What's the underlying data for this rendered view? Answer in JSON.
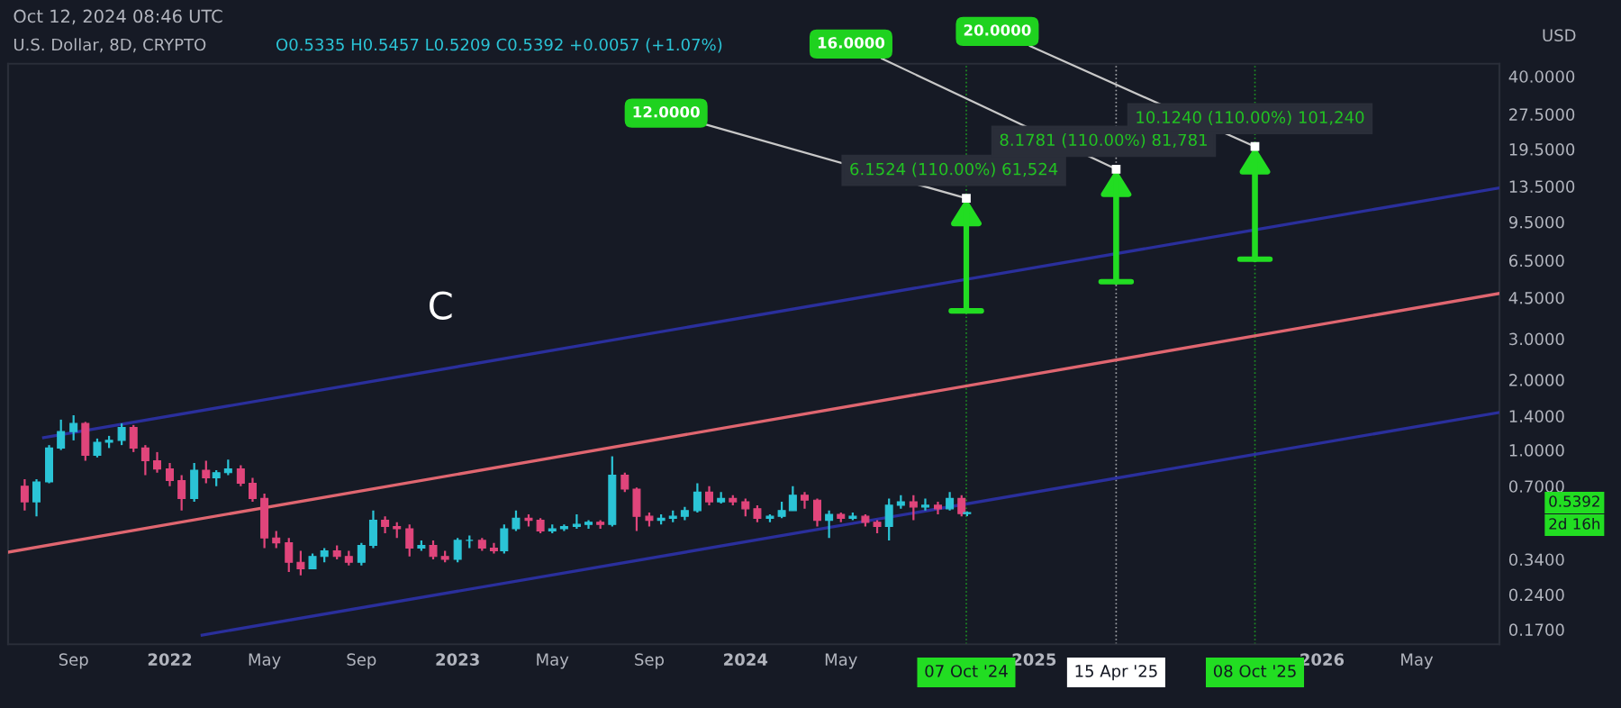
{
  "chart_data": {
    "type": "candlestick",
    "title": "U.S. Dollar, 8D, CRYPTO",
    "subtitle": "O0.5335 H0.5457 L0.5209 C0.5392 +0.0057 (+1.07%)",
    "ylabel": "USD",
    "x": [
      "2021-07-01",
      "2021-07-16",
      "2021-08-01",
      "2021-08-16",
      "2021-09-01",
      "2021-09-16",
      "2021-10-01",
      "2021-10-16",
      "2021-11-01",
      "2021-11-16",
      "2021-12-01",
      "2021-12-16",
      "2022-01-01",
      "2022-01-16",
      "2022-02-01",
      "2022-02-16",
      "2022-03-01",
      "2022-03-16",
      "2022-04-01",
      "2022-04-16",
      "2022-05-01",
      "2022-05-16",
      "2022-06-01",
      "2022-06-16",
      "2022-07-01",
      "2022-07-16",
      "2022-08-01",
      "2022-08-16",
      "2022-09-01",
      "2022-09-16",
      "2022-10-01",
      "2022-10-16",
      "2022-11-01",
      "2022-11-16",
      "2022-12-01",
      "2022-12-16",
      "2023-01-01",
      "2023-01-16",
      "2023-02-01",
      "2023-02-16",
      "2023-03-01",
      "2023-03-16",
      "2023-04-01",
      "2023-04-16",
      "2023-05-01",
      "2023-05-16",
      "2023-06-01",
      "2023-06-16",
      "2023-07-01",
      "2023-07-16",
      "2023-08-01",
      "2023-08-16",
      "2023-09-01",
      "2023-09-16",
      "2023-10-01",
      "2023-10-16",
      "2023-11-01",
      "2023-11-16",
      "2023-12-01",
      "2023-12-16",
      "2024-01-01",
      "2024-01-16",
      "2024-02-01",
      "2024-02-16",
      "2024-03-01",
      "2024-03-16",
      "2024-04-01",
      "2024-04-16",
      "2024-05-01",
      "2024-05-16",
      "2024-06-01",
      "2024-06-16",
      "2024-07-01",
      "2024-07-16",
      "2024-08-01",
      "2024-08-16",
      "2024-09-01",
      "2024-09-16",
      "2024-10-01",
      "2024-10-08"
    ],
    "ohlc": [
      [
        0.7,
        0.75,
        0.55,
        0.6
      ],
      [
        0.6,
        0.75,
        0.52,
        0.73
      ],
      [
        0.73,
        1.05,
        0.72,
        1.02
      ],
      [
        1.02,
        1.35,
        1.0,
        1.2
      ],
      [
        1.2,
        1.41,
        1.1,
        1.3
      ],
      [
        1.3,
        1.32,
        0.9,
        0.95
      ],
      [
        0.95,
        1.12,
        0.93,
        1.08
      ],
      [
        1.08,
        1.15,
        1.02,
        1.1
      ],
      [
        1.1,
        1.3,
        1.05,
        1.25
      ],
      [
        1.25,
        1.28,
        0.98,
        1.02
      ],
      [
        1.02,
        1.05,
        0.78,
        0.9
      ],
      [
        0.9,
        0.98,
        0.8,
        0.83
      ],
      [
        0.83,
        0.88,
        0.7,
        0.74
      ],
      [
        0.74,
        0.78,
        0.55,
        0.62
      ],
      [
        0.62,
        0.88,
        0.6,
        0.82
      ],
      [
        0.82,
        0.9,
        0.72,
        0.76
      ],
      [
        0.76,
        0.82,
        0.7,
        0.8
      ],
      [
        0.8,
        0.91,
        0.78,
        0.83
      ],
      [
        0.83,
        0.86,
        0.7,
        0.72
      ],
      [
        0.72,
        0.76,
        0.6,
        0.62
      ],
      [
        0.62,
        0.65,
        0.38,
        0.42
      ],
      [
        0.42,
        0.45,
        0.38,
        0.4
      ],
      [
        0.4,
        0.42,
        0.3,
        0.33
      ],
      [
        0.33,
        0.37,
        0.29,
        0.31
      ],
      [
        0.31,
        0.36,
        0.31,
        0.35
      ],
      [
        0.35,
        0.38,
        0.33,
        0.37
      ],
      [
        0.37,
        0.39,
        0.34,
        0.35
      ],
      [
        0.35,
        0.37,
        0.32,
        0.33
      ],
      [
        0.33,
        0.4,
        0.32,
        0.39
      ],
      [
        0.39,
        0.55,
        0.38,
        0.5
      ],
      [
        0.5,
        0.52,
        0.44,
        0.47
      ],
      [
        0.47,
        0.49,
        0.42,
        0.46
      ],
      [
        0.46,
        0.48,
        0.35,
        0.38
      ],
      [
        0.38,
        0.41,
        0.37,
        0.39
      ],
      [
        0.39,
        0.41,
        0.34,
        0.35
      ],
      [
        0.35,
        0.37,
        0.33,
        0.34
      ],
      [
        0.34,
        0.42,
        0.33,
        0.41
      ],
      [
        0.41,
        0.43,
        0.38,
        0.41
      ],
      [
        0.41,
        0.42,
        0.37,
        0.38
      ],
      [
        0.38,
        0.4,
        0.36,
        0.37
      ],
      [
        0.37,
        0.48,
        0.36,
        0.46
      ],
      [
        0.46,
        0.55,
        0.45,
        0.51
      ],
      [
        0.51,
        0.53,
        0.47,
        0.5
      ],
      [
        0.5,
        0.51,
        0.44,
        0.45
      ],
      [
        0.45,
        0.48,
        0.44,
        0.46
      ],
      [
        0.46,
        0.48,
        0.45,
        0.47
      ],
      [
        0.47,
        0.53,
        0.46,
        0.48
      ],
      [
        0.48,
        0.5,
        0.46,
        0.49
      ],
      [
        0.49,
        0.5,
        0.46,
        0.48
      ],
      [
        0.48,
        0.94,
        0.47,
        0.78
      ],
      [
        0.78,
        0.8,
        0.66,
        0.68
      ],
      [
        0.68,
        0.69,
        0.45,
        0.52
      ],
      [
        0.52,
        0.54,
        0.47,
        0.5
      ],
      [
        0.5,
        0.53,
        0.48,
        0.51
      ],
      [
        0.51,
        0.55,
        0.49,
        0.52
      ],
      [
        0.52,
        0.57,
        0.5,
        0.55
      ],
      [
        0.55,
        0.72,
        0.54,
        0.66
      ],
      [
        0.66,
        0.7,
        0.58,
        0.6
      ],
      [
        0.6,
        0.66,
        0.59,
        0.62
      ],
      [
        0.62,
        0.64,
        0.58,
        0.6
      ],
      [
        0.6,
        0.62,
        0.52,
        0.56
      ],
      [
        0.56,
        0.58,
        0.49,
        0.51
      ],
      [
        0.51,
        0.53,
        0.49,
        0.52
      ],
      [
        0.52,
        0.6,
        0.51,
        0.55
      ],
      [
        0.55,
        0.7,
        0.55,
        0.64
      ],
      [
        0.64,
        0.66,
        0.56,
        0.61
      ],
      [
        0.61,
        0.62,
        0.47,
        0.5
      ],
      [
        0.5,
        0.55,
        0.42,
        0.53
      ],
      [
        0.53,
        0.54,
        0.49,
        0.51
      ],
      [
        0.51,
        0.54,
        0.5,
        0.52
      ],
      [
        0.52,
        0.53,
        0.47,
        0.49
      ],
      [
        0.49,
        0.5,
        0.44,
        0.47
      ],
      [
        0.47,
        0.62,
        0.41,
        0.58
      ],
      [
        0.58,
        0.64,
        0.56,
        0.6
      ],
      [
        0.6,
        0.64,
        0.5,
        0.57
      ],
      [
        0.57,
        0.62,
        0.55,
        0.58
      ],
      [
        0.58,
        0.6,
        0.53,
        0.56
      ],
      [
        0.56,
        0.66,
        0.55,
        0.62
      ],
      [
        0.62,
        0.64,
        0.52,
        0.5335
      ],
      [
        0.5335,
        0.5457,
        0.5209,
        0.5392
      ]
    ],
    "colors": [
      "#e0457b",
      "#2bc4d6",
      "#2bc4d6",
      "#2bc4d6",
      "#2bc4d6",
      "#e0457b",
      "#2bc4d6",
      "#2bc4d6",
      "#2bc4d6",
      "#e0457b",
      "#e0457b",
      "#e0457b",
      "#e0457b",
      "#e0457b",
      "#2bc4d6",
      "#e0457b",
      "#2bc4d6",
      "#2bc4d6",
      "#e0457b",
      "#e0457b",
      "#e0457b",
      "#e0457b",
      "#e0457b",
      "#e0457b",
      "#2bc4d6",
      "#2bc4d6",
      "#e0457b",
      "#e0457b",
      "#2bc4d6",
      "#2bc4d6",
      "#e0457b",
      "#e0457b",
      "#e0457b",
      "#2bc4d6",
      "#e0457b",
      "#e0457b",
      "#2bc4d6",
      "#2bc4d6",
      "#e0457b",
      "#e0457b",
      "#2bc4d6",
      "#2bc4d6",
      "#e0457b",
      "#e0457b",
      "#2bc4d6",
      "#2bc4d6",
      "#2bc4d6",
      "#2bc4d6",
      "#e0457b",
      "#2bc4d6",
      "#e0457b",
      "#e0457b",
      "#e0457b",
      "#2bc4d6",
      "#2bc4d6",
      "#2bc4d6",
      "#2bc4d6",
      "#e0457b",
      "#2bc4d6",
      "#e0457b",
      "#e0457b",
      "#e0457b",
      "#2bc4d6",
      "#2bc4d6",
      "#2bc4d6",
      "#e0457b",
      "#e0457b",
      "#2bc4d6",
      "#e0457b",
      "#2bc4d6",
      "#e0457b",
      "#e0457b",
      "#2bc4d6",
      "#2bc4d6",
      "#e0457b",
      "#2bc4d6",
      "#e0457b",
      "#2bc4d6",
      "#e0457b",
      "#2bc4d6"
    ],
    "series": [
      {
        "type": "line",
        "x": [
          "2021-07-25",
          "2026-08-14"
        ],
        "values": [
          1.13,
          13.3
        ],
        "color": "#2a2f9c"
      },
      {
        "type": "line",
        "x": [
          "2021-06-10",
          "2026-08-14"
        ],
        "values": [
          0.365,
          4.69
        ],
        "color": "#e06670"
      },
      {
        "type": "line",
        "x": [
          "2022-02-11",
          "2026-08-14"
        ],
        "values": [
          0.161,
          1.45
        ],
        "color": "#2a2f9c"
      }
    ],
    "ref_lines": [
      {
        "axis": "x",
        "value": "2024-10-07",
        "label": "07 Oct '24",
        "color": "#22dd22",
        "line_style": "dotted"
      },
      {
        "axis": "x",
        "value": "2025-04-15",
        "label": "15 Apr '25",
        "color": "#ffffff",
        "line_style": "dotted"
      },
      {
        "axis": "x",
        "value": "2025-10-08",
        "label": "08 Oct '25",
        "color": "#22dd22",
        "line_style": "dotted"
      }
    ],
    "annotations": [
      {
        "text": "12.0000",
        "x": "2024-10-07",
        "y": 12.0
      },
      {
        "text": "16.0000",
        "x": "2025-04-15",
        "y": 16.0
      },
      {
        "text": "20.0000",
        "x": "2025-10-08",
        "y": 20.0
      },
      {
        "text": "6.1524 (110.00%) 61,524",
        "x": "2024-10-07",
        "y": 12.0
      },
      {
        "text": "8.1781 (110.00%) 81,781",
        "x": "2025-04-15",
        "y": 16.0
      },
      {
        "text": "10.1240 (110.00%) 101,240",
        "x": "2025-10-08",
        "y": 20.0
      },
      "0.5392",
      "2d 16h",
      "C",
      "Oct 12, 2024 08:46 UTC"
    ],
    "log": "y",
    "ylim": [
      0.147,
      45.3
    ],
    "yticks": [
      {
        "value": 0.17,
        "label": "0.1700"
      },
      {
        "value": 0.24,
        "label": "0.2400"
      },
      {
        "value": 0.34,
        "label": "0.3400"
      },
      {
        "value": 0.7,
        "label": "0.7000"
      },
      {
        "value": 1,
        "label": "1.0000"
      },
      {
        "value": 1.4,
        "label": "1.4000"
      },
      {
        "value": 2,
        "label": "2.0000"
      },
      {
        "value": 3,
        "label": "3.0000"
      },
      {
        "value": 4.5,
        "label": "4.5000"
      },
      {
        "value": 6.5,
        "label": "6.5000"
      },
      {
        "value": 9.5,
        "label": "9.5000"
      },
      {
        "value": 13.5,
        "label": "13.5000"
      },
      {
        "value": 19.5,
        "label": "19.5000"
      },
      {
        "value": 27.5,
        "label": "27.5000"
      },
      {
        "value": 40,
        "label": "40.0000"
      }
    ],
    "xlim": [
      "2021-06-10",
      "2026-08-14"
    ],
    "xticks": [
      {
        "value": "2021-09-01",
        "label": "Sep"
      },
      {
        "value": "2022-01-01",
        "label": "2022"
      },
      {
        "value": "2022-05-01",
        "label": "May"
      },
      {
        "value": "2022-09-01",
        "label": "Sep"
      },
      {
        "value": "2023-01-01",
        "label": "2023"
      },
      {
        "value": "2023-05-01",
        "label": "May"
      },
      {
        "value": "2023-09-01",
        "label": "Sep"
      },
      {
        "value": "2024-01-01",
        "label": "2024"
      },
      {
        "value": "2024-05-01",
        "label": "May"
      },
      {
        "value": "2025-01-01",
        "label": "2025"
      },
      {
        "value": "2026-01-01",
        "label": "2026"
      },
      {
        "value": "2026-05-01",
        "label": "May"
      }
    ],
    "grid": false
  }
}
